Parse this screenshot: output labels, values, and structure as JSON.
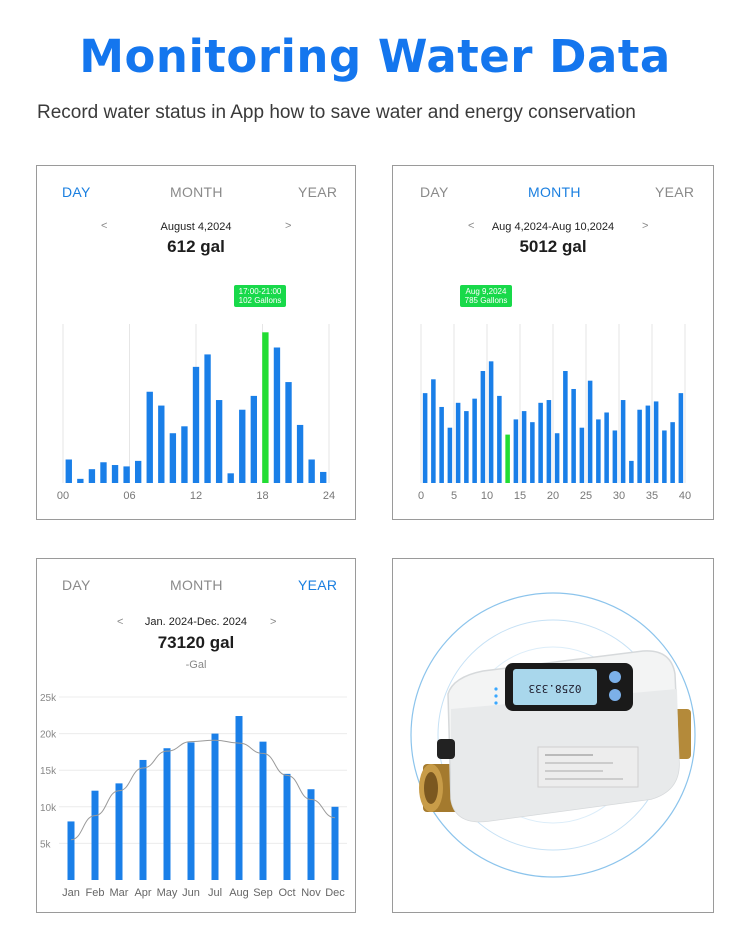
{
  "header": {
    "title": "Monitoring Water Data",
    "subtitle": "Record water status in App how to save water and energy conservation"
  },
  "colors": {
    "title": "#1476ee",
    "bar": "#1a7fe8",
    "highlight": "#22dd33",
    "tab_active": "#1a7fe0"
  },
  "panels": [
    {
      "tabs": [
        "DAY",
        "MONTH",
        "YEAR"
      ],
      "active_tab": 0,
      "prev": "<",
      "next": ">",
      "period": "August 4,2024",
      "total": "612 gal",
      "tooltip": {
        "line1": "17:00-21:00",
        "line2": "102 Gallons"
      }
    },
    {
      "tabs": [
        "DAY",
        "MONTH",
        "YEAR"
      ],
      "active_tab": 1,
      "prev": "<",
      "next": ">",
      "period": "Aug 4,2024-Aug 10,2024",
      "total": "5012 gal",
      "tooltip": {
        "line1": "Aug 9,2024",
        "line2": "785 Gallons"
      }
    },
    {
      "tabs": [
        "DAY",
        "MONTH",
        "YEAR"
      ],
      "active_tab": 2,
      "prev": "<",
      "next": ">",
      "period": "Jan. 2024-Dec. 2024",
      "total": "73120 gal",
      "unit": "-Gal"
    }
  ],
  "device": {
    "display_digits": "0258.333"
  },
  "chart_data": [
    {
      "type": "bar",
      "x_tick_labels": [
        "00",
        "06",
        "12",
        "18",
        "24"
      ],
      "x_tick_values": [
        0,
        6,
        12,
        18,
        24
      ],
      "x_range": [
        0,
        24
      ],
      "values": [
        1.7,
        0.3,
        1.0,
        1.5,
        1.3,
        1.2,
        1.6,
        6.6,
        5.6,
        3.6,
        4.1,
        8.4,
        9.3,
        6.0,
        0.7,
        5.3,
        6.3,
        10.9,
        9.8,
        7.3,
        4.2,
        1.7,
        0.8
      ],
      "highlight_index": 17
    },
    {
      "type": "bar",
      "x_tick_labels": [
        "0",
        "5",
        "10",
        "15",
        "20",
        "25",
        "30",
        "35",
        "40"
      ],
      "x_tick_values": [
        0,
        5,
        10,
        15,
        20,
        25,
        30,
        35,
        40
      ],
      "x_range": [
        0,
        40
      ],
      "values": [
        6.5,
        7.5,
        5.5,
        4.0,
        5.8,
        5.2,
        6.1,
        8.1,
        8.8,
        6.3,
        3.5,
        4.6,
        5.2,
        4.4,
        5.8,
        6.0,
        3.6,
        8.1,
        6.8,
        4.0,
        7.4,
        4.6,
        5.1,
        3.8,
        6.0,
        1.6,
        5.3,
        5.6,
        5.9,
        3.8,
        4.4,
        6.5
      ],
      "highlight_index": 10
    },
    {
      "type": "bar",
      "categories": [
        "Jan",
        "Feb",
        "Mar",
        "Apr",
        "May",
        "Jun",
        "Jul",
        "Aug",
        "Sep",
        "Oct",
        "Nov",
        "Dec"
      ],
      "values": [
        8000,
        12200,
        13200,
        16400,
        18000,
        18800,
        20000,
        22400,
        18900,
        14500,
        12400,
        10000
      ],
      "trend": [
        5500,
        8800,
        12200,
        15300,
        17600,
        18900,
        19100,
        18700,
        17300,
        14300,
        11000,
        8500
      ],
      "y_ticks": [
        5000,
        10000,
        15000,
        20000,
        25000
      ],
      "y_tick_labels": [
        "5k",
        "10k",
        "15k",
        "20k",
        "25k"
      ],
      "ylim": [
        0,
        25000
      ]
    }
  ]
}
